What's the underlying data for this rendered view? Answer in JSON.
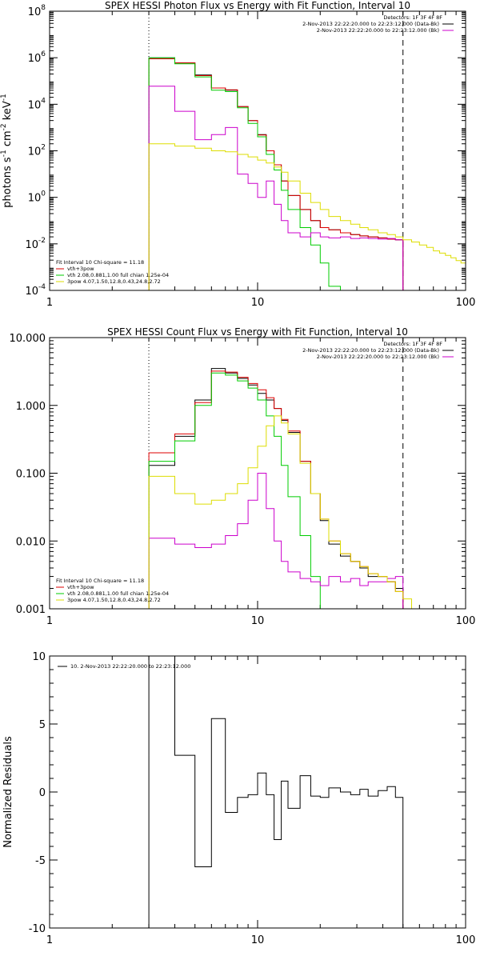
{
  "chart_data": [
    {
      "type": "line",
      "title": "SPEX HESSI Photon Flux vs Energy with Fit Function, Interval 10",
      "xscale": "log",
      "yscale": "log",
      "xlim": [
        1,
        100
      ],
      "ylim": [
        0.0001,
        100000000
      ],
      "xticks": [
        {
          "v": 1,
          "label": "1"
        },
        {
          "v": 10,
          "label": "10"
        },
        {
          "v": 100,
          "label": "100"
        }
      ],
      "yticks": [
        {
          "v": 0.0001,
          "base": "10",
          "exp": "-4"
        },
        {
          "v": 0.01,
          "base": "10",
          "exp": "-2"
        },
        {
          "v": 1,
          "base": "10",
          "exp": "0"
        },
        {
          "v": 100,
          "base": "10",
          "exp": "2"
        },
        {
          "v": 10000,
          "base": "10",
          "exp": "4"
        },
        {
          "v": 1000000,
          "base": "10",
          "exp": "6"
        },
        {
          "v": 100000000,
          "base": "10",
          "exp": "8"
        }
      ],
      "ylabel_parts": [
        "photons s",
        "-1",
        " cm",
        "-2",
        " keV",
        "-1"
      ],
      "vlines": [
        {
          "x": 3,
          "style": "dotted"
        },
        {
          "x": 50,
          "style": "dashed"
        }
      ],
      "legend_right": {
        "title": "Detectors: 1F 3F 4F 8F",
        "items": [
          {
            "label": "2-Nov-2013 22:22:20.000 to 22:23:12.000 (Data-Bk)",
            "color": "#000000"
          },
          {
            "label": "2-Nov-2013 22:22:20.000 to 22:23:12.000 (Bk)",
            "color": "#cc00cc"
          }
        ]
      },
      "legend_left": {
        "title": "Fit Interval 10   Chi-square = 11.18",
        "items": [
          {
            "label": "vth+3pow",
            "color": "#dd0000"
          },
          {
            "label": "vth 2.08,0.881,1.00   full chian 1.25e-04",
            "color": "#00cc00"
          },
          {
            "label": "3pow 4.07,1.50,12.8,0.43,24.8,2.72",
            "color": "#dddd00"
          }
        ]
      },
      "series": [
        {
          "color": "#000000",
          "edges": [
            3,
            4,
            5,
            6,
            7,
            8,
            9,
            10,
            11,
            12,
            13,
            14,
            16,
            18,
            20,
            22,
            25,
            28,
            31,
            34,
            38,
            42,
            46,
            50
          ],
          "values": [
            1000000,
            600000,
            180000,
            50000,
            40000,
            8000,
            2000,
            500,
            100,
            25,
            5,
            1.2,
            0.3,
            0.1,
            0.05,
            0.04,
            0.03,
            0.025,
            0.022,
            0.02,
            0.018,
            0.016,
            0.015
          ]
        },
        {
          "color": "#dd0000",
          "edges": [
            3,
            4,
            5,
            6,
            7,
            8,
            9,
            10,
            11,
            12,
            13,
            14,
            16,
            18,
            20,
            22,
            25,
            28,
            31,
            34,
            38,
            42,
            46,
            50
          ],
          "values": [
            900000,
            600000,
            170000,
            50000,
            42000,
            8000,
            2000,
            480,
            100,
            25,
            5,
            1.2,
            0.3,
            0.1,
            0.05,
            0.04,
            0.03,
            0.025,
            0.022,
            0.02,
            0.018,
            0.016,
            0.015
          ]
        },
        {
          "color": "#00cc00",
          "edges": [
            3,
            4,
            5,
            6,
            7,
            8,
            9,
            10,
            11,
            12,
            13,
            14,
            16,
            18,
            20,
            22,
            25
          ],
          "values": [
            1000000,
            550000,
            150000,
            40000,
            35000,
            7000,
            1500,
            400,
            70,
            15,
            2,
            0.3,
            0.05,
            0.009,
            0.0015,
            0.00015
          ]
        },
        {
          "color": "#cc00cc",
          "edges": [
            3,
            4,
            5,
            6,
            7,
            8,
            9,
            10,
            11,
            12,
            13,
            14,
            16,
            18,
            20,
            22,
            25,
            28,
            31,
            34,
            38,
            42,
            46,
            50
          ],
          "values": [
            60000,
            5000,
            300,
            500,
            1000,
            10,
            4,
            1,
            5,
            0.5,
            0.1,
            0.03,
            0.02,
            0.03,
            0.02,
            0.018,
            0.02,
            0.017,
            0.018,
            0.017,
            0.016,
            0.017,
            0.015
          ]
        },
        {
          "color": "#dddd00",
          "edges": [
            3,
            4,
            5,
            6,
            7,
            8,
            9,
            10,
            11,
            12,
            13,
            14,
            16,
            18,
            20,
            22,
            25,
            28,
            31,
            34,
            38,
            42,
            46,
            50,
            55,
            60,
            65,
            70,
            75,
            80,
            85,
            90,
            95,
            100
          ],
          "values": [
            200,
            160,
            130,
            100,
            90,
            70,
            55,
            40,
            30,
            20,
            12,
            5,
            1.5,
            0.6,
            0.3,
            0.15,
            0.1,
            0.07,
            0.05,
            0.04,
            0.03,
            0.025,
            0.02,
            0.015,
            0.012,
            0.009,
            0.007,
            0.005,
            0.004,
            0.0032,
            0.0025,
            0.0019,
            0.0015
          ]
        }
      ]
    },
    {
      "type": "line",
      "title": "SPEX HESSI Count Flux vs Energy with Fit Function, Interval 10",
      "xscale": "log",
      "yscale": "log",
      "xlim": [
        1,
        100
      ],
      "ylim": [
        0.001,
        10
      ],
      "xticks": [
        {
          "v": 1,
          "label": "1"
        },
        {
          "v": 10,
          "label": "10"
        },
        {
          "v": 100,
          "label": "100"
        }
      ],
      "yticks": [
        {
          "v": 0.001,
          "label": "0.001"
        },
        {
          "v": 0.01,
          "label": "0.010"
        },
        {
          "v": 0.1,
          "label": "0.100"
        },
        {
          "v": 1,
          "label": "1.000"
        },
        {
          "v": 10,
          "label": "10.000"
        }
      ],
      "vlines": [
        {
          "x": 3,
          "style": "dotted"
        },
        {
          "x": 50,
          "style": "dashed"
        }
      ],
      "legend_right": {
        "title": "Detectors: 1F 3F 4F 8F",
        "items": [
          {
            "label": "2-Nov-2013 22:22:20.000 to 22:23:12.000 (Data-Bk)",
            "color": "#000000"
          },
          {
            "label": "2-Nov-2013 22:22:20.000 to 22:23:12.000 (Bk)",
            "color": "#cc00cc"
          }
        ]
      },
      "legend_left": {
        "title": "Fit Interval 10   Chi-square = 11.18",
        "items": [
          {
            "label": "vth+3pow",
            "color": "#dd0000"
          },
          {
            "label": "vth 2.08,0.881,1.00   full chian 1.25e-04",
            "color": "#00cc00"
          },
          {
            "label": "3pow 4.07,1.50,12.8,0.43,24.8,2.72",
            "color": "#dddd00"
          }
        ]
      },
      "series": [
        {
          "color": "#000000",
          "edges": [
            3,
            4,
            5,
            6,
            7,
            8,
            9,
            10,
            11,
            12,
            13,
            14,
            16,
            18,
            20,
            22,
            25,
            28,
            31,
            34,
            38,
            42,
            46,
            50
          ],
          "values": [
            0.13,
            0.35,
            1.2,
            3.5,
            3,
            2.5,
            2,
            1.5,
            1.2,
            0.9,
            0.6,
            0.4,
            0.15,
            0.05,
            0.02,
            0.009,
            0.006,
            0.005,
            0.004,
            0.003,
            0.003,
            0.0025,
            0.002
          ]
        },
        {
          "color": "#dd0000",
          "edges": [
            3,
            4,
            5,
            6,
            7,
            8,
            9,
            10,
            11,
            12,
            13,
            14,
            16,
            18,
            20,
            22,
            25,
            28,
            31,
            34,
            38,
            42,
            46,
            50
          ],
          "values": [
            0.2,
            0.38,
            1.1,
            3.2,
            3.1,
            2.6,
            2.1,
            1.7,
            1.3,
            0.9,
            0.62,
            0.42,
            0.15,
            0.05,
            0.021,
            0.01,
            0.0065,
            0.005,
            0.0042,
            0.0033,
            0.003,
            0.0025,
            0.0018
          ]
        },
        {
          "color": "#00cc00",
          "edges": [
            3,
            4,
            5,
            6,
            7,
            8,
            9,
            10,
            11,
            12,
            13,
            14,
            16,
            18,
            20
          ],
          "values": [
            0.15,
            0.3,
            1,
            3,
            2.8,
            2.3,
            1.8,
            1.2,
            0.7,
            0.35,
            0.13,
            0.045,
            0.012,
            0.003
          ]
        },
        {
          "color": "#cc00cc",
          "edges": [
            3,
            4,
            5,
            6,
            7,
            8,
            9,
            10,
            11,
            12,
            13,
            14,
            16,
            18,
            20,
            22,
            25,
            28,
            31,
            34,
            38,
            42,
            46,
            50
          ],
          "values": [
            0.011,
            0.009,
            0.008,
            0.009,
            0.012,
            0.018,
            0.04,
            0.1,
            0.03,
            0.01,
            0.005,
            0.0035,
            0.0028,
            0.0025,
            0.0022,
            0.003,
            0.0025,
            0.0028,
            0.0022,
            0.0025,
            0.0025,
            0.0028,
            0.003
          ]
        },
        {
          "color": "#dddd00",
          "edges": [
            3,
            4,
            5,
            6,
            7,
            8,
            9,
            10,
            11,
            12,
            13,
            14,
            16,
            18,
            20,
            22,
            25,
            28,
            31,
            34,
            38,
            42,
            46,
            50,
            55,
            60
          ],
          "values": [
            0.09,
            0.05,
            0.035,
            0.04,
            0.05,
            0.07,
            0.12,
            0.25,
            0.5,
            0.7,
            0.55,
            0.38,
            0.14,
            0.05,
            0.021,
            0.01,
            0.0065,
            0.005,
            0.0042,
            0.0033,
            0.003,
            0.0025,
            0.0018,
            0.0014,
            0.001
          ]
        }
      ]
    },
    {
      "type": "line",
      "xscale": "log",
      "yscale": "linear",
      "xlim": [
        1,
        100
      ],
      "ylim": [
        -10,
        10
      ],
      "ylabel": "Normalized Residuals",
      "xticks": [
        {
          "v": 1,
          "label": "1"
        },
        {
          "v": 10,
          "label": "10"
        },
        {
          "v": 100,
          "label": "100"
        }
      ],
      "yticks": [
        {
          "v": -10,
          "label": "-10"
        },
        {
          "v": -5,
          "label": "-5"
        },
        {
          "v": 0,
          "label": "0"
        },
        {
          "v": 5,
          "label": "5"
        },
        {
          "v": 10,
          "label": "10"
        }
      ],
      "legend_left": {
        "items": [
          {
            "label": "10.  2-Nov-2013 22:22:20.000 to 22:23:12.000",
            "color": "#000000"
          }
        ]
      },
      "series": [
        {
          "color": "#000000",
          "edges": [
            3,
            4,
            5,
            6,
            7,
            8,
            9,
            10,
            11,
            12,
            13,
            14,
            16,
            18,
            20,
            22,
            25,
            28,
            31,
            34,
            38,
            42,
            46,
            50
          ],
          "values": [
            10.6,
            2.7,
            -5.5,
            5.4,
            -1.5,
            -0.4,
            -0.2,
            1.4,
            -0.2,
            -3.5,
            0.8,
            -1.2,
            1.2,
            -0.3,
            -0.4,
            0.3,
            0,
            -0.2,
            0.2,
            -0.3,
            0.1,
            0.4,
            -0.4
          ]
        }
      ]
    }
  ]
}
